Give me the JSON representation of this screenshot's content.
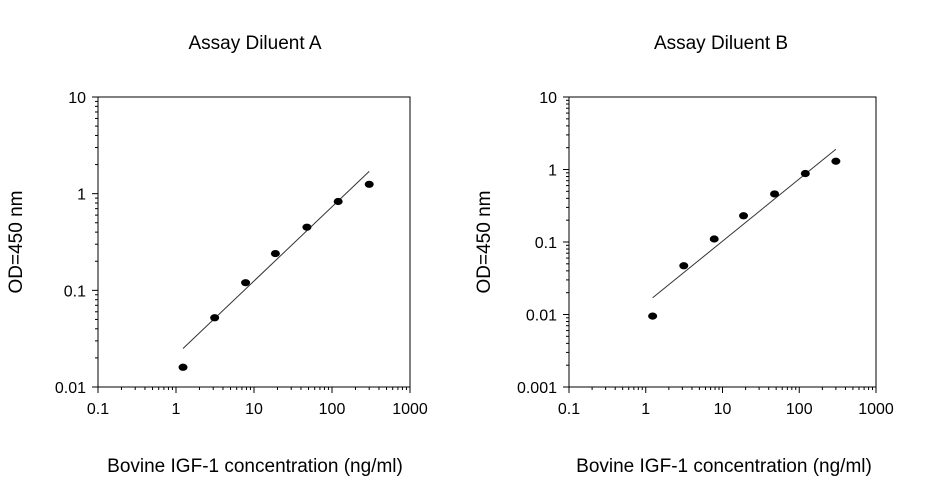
{
  "chart_data": [
    {
      "type": "scatter",
      "title": "Assay Diluent A",
      "xlabel": "Bovine IGF-1 concentration (ng/ml)",
      "ylabel": "OD=450 nm",
      "xscale": "log",
      "yscale": "log",
      "xlim": [
        0.1,
        1000
      ],
      "ylim": [
        0.01,
        10
      ],
      "xticks": [
        "0.1",
        "1",
        "10",
        "100",
        "1000"
      ],
      "yticks": [
        "0.01",
        "0.1",
        "1",
        "10"
      ],
      "grid": false,
      "series": [
        {
          "type": "scatter",
          "x": [
            1.23,
            3.13,
            7.8,
            18.8,
            47.7,
            120,
            300
          ],
          "y": [
            0.016,
            0.052,
            0.12,
            0.24,
            0.45,
            0.83,
            1.25
          ]
        },
        {
          "type": "line",
          "x": [
            1.23,
            300
          ],
          "y": [
            0.025,
            1.7
          ]
        }
      ]
    },
    {
      "type": "scatter",
      "title": "Assay Diluent B",
      "xlabel": "Bovine IGF-1 concentration (ng/ml)",
      "ylabel": "OD=450 nm",
      "xscale": "log",
      "yscale": "log",
      "xlim": [
        0.1,
        1000
      ],
      "ylim": [
        0.001,
        10
      ],
      "xticks": [
        "0.1",
        "1",
        "10",
        "100",
        "1000"
      ],
      "yticks": [
        "0.001",
        "0.01",
        "0.1",
        "1",
        "10"
      ],
      "grid": false,
      "series": [
        {
          "type": "scatter",
          "x": [
            1.23,
            3.13,
            7.8,
            18.8,
            47.7,
            120,
            300
          ],
          "y": [
            0.0095,
            0.047,
            0.11,
            0.23,
            0.46,
            0.88,
            1.3
          ]
        },
        {
          "type": "line",
          "x": [
            1.23,
            300
          ],
          "y": [
            0.017,
            1.9
          ]
        }
      ]
    }
  ]
}
